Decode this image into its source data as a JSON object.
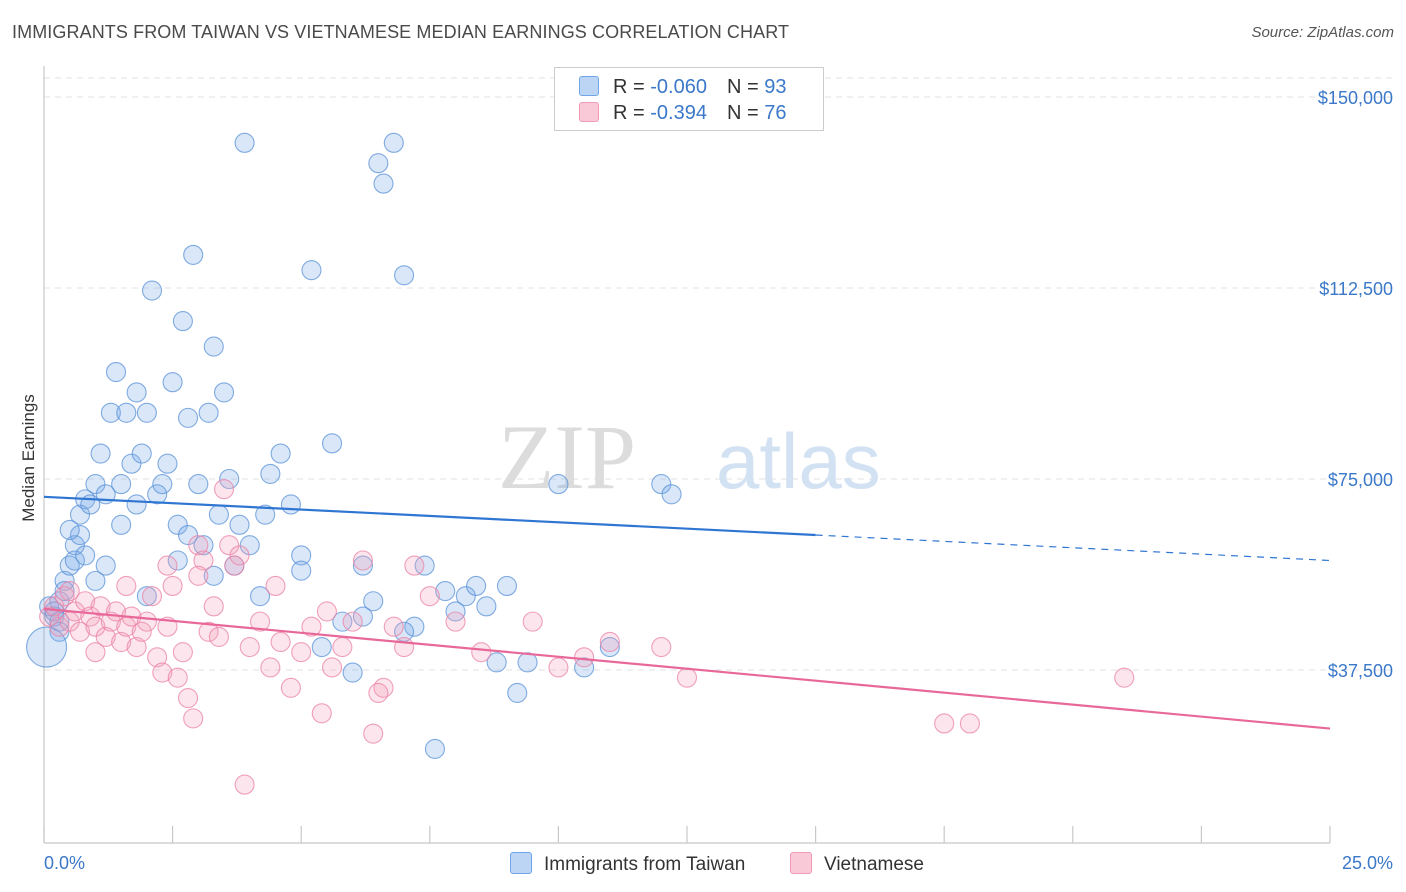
{
  "header": {
    "title": "IMMIGRANTS FROM TAIWAN VS VIETNAMESE MEDIAN EARNINGS CORRELATION CHART",
    "source": "Source: ZipAtlas.com"
  },
  "watermark": {
    "zip": "ZIP",
    "atlas": "atlas"
  },
  "legend": {
    "rows": [
      {
        "r_label": "R = ",
        "r_value": "-0.060",
        "n_label": "N = ",
        "n_value": "93",
        "color": "#6ea6e8"
      },
      {
        "r_label": "R = ",
        "r_value": "-0.394",
        "n_label": "N = ",
        "n_value": "76",
        "color": "#f09ab5"
      }
    ]
  },
  "bottom_legend": {
    "items": [
      {
        "label": "Immigrants from Taiwan",
        "color": "#6ea6e8"
      },
      {
        "label": "Vietnamese",
        "color": "#f09ab5"
      }
    ]
  },
  "chart_data": {
    "type": "scatter",
    "title": "IMMIGRANTS FROM TAIWAN VS VIETNAMESE MEDIAN EARNINGS CORRELATION CHART",
    "xlabel": "",
    "ylabel": "Median Earnings",
    "xlim": [
      0,
      25
    ],
    "ylim": [
      0,
      150000
    ],
    "x_tick_labels": [
      "0.0%",
      "25.0%"
    ],
    "y_ticks": [
      37500,
      75000,
      112500,
      150000
    ],
    "y_tick_labels": [
      "$37,500",
      "$75,000",
      "$112,500",
      "$150,000"
    ],
    "grid": "horizontal dashed",
    "legend_position": "top-center",
    "series": [
      {
        "name": "Immigrants from Taiwan",
        "color": "#6ea6e8",
        "trend": {
          "x": [
            0,
            15,
            25
          ],
          "y": [
            71500,
            64000,
            59000
          ],
          "solid_until": 15
        },
        "points": [
          [
            0.1,
            50000
          ],
          [
            0.2,
            48000
          ],
          [
            0.3,
            51000
          ],
          [
            0.4,
            55000
          ],
          [
            0.5,
            58000
          ],
          [
            0.6,
            62000
          ],
          [
            0.7,
            68000
          ],
          [
            0.8,
            71000
          ],
          [
            0.2,
            49000
          ],
          [
            0.3,
            47000
          ],
          [
            0.4,
            53000
          ],
          [
            0.6,
            59000
          ],
          [
            0.7,
            64000
          ],
          [
            0.9,
            70000
          ],
          [
            1.0,
            74000
          ],
          [
            1.1,
            80000
          ],
          [
            1.2,
            72000
          ],
          [
            1.3,
            88000
          ],
          [
            1.4,
            96000
          ],
          [
            1.5,
            74000
          ],
          [
            1.6,
            88000
          ],
          [
            1.7,
            78000
          ],
          [
            1.8,
            92000
          ],
          [
            1.9,
            80000
          ],
          [
            2.0,
            88000
          ],
          [
            2.1,
            112000
          ],
          [
            2.2,
            72000
          ],
          [
            2.3,
            74000
          ],
          [
            2.4,
            78000
          ],
          [
            2.5,
            94000
          ],
          [
            2.6,
            66000
          ],
          [
            2.7,
            106000
          ],
          [
            2.8,
            87000
          ],
          [
            2.9,
            119000
          ],
          [
            3.0,
            74000
          ],
          [
            3.1,
            62000
          ],
          [
            3.2,
            88000
          ],
          [
            3.3,
            101000
          ],
          [
            3.4,
            68000
          ],
          [
            3.5,
            92000
          ],
          [
            3.6,
            75000
          ],
          [
            3.8,
            66000
          ],
          [
            3.9,
            141000
          ],
          [
            4.0,
            62000
          ],
          [
            4.2,
            52000
          ],
          [
            4.4,
            76000
          ],
          [
            4.6,
            80000
          ],
          [
            4.8,
            70000
          ],
          [
            5.0,
            60000
          ],
          [
            5.2,
            116000
          ],
          [
            5.4,
            42000
          ],
          [
            5.6,
            82000
          ],
          [
            5.8,
            47000
          ],
          [
            6.0,
            37000
          ],
          [
            6.2,
            58000
          ],
          [
            6.4,
            51000
          ],
          [
            6.5,
            137000
          ],
          [
            6.6,
            133000
          ],
          [
            6.8,
            141000
          ],
          [
            7.0,
            115000
          ],
          [
            7.2,
            46000
          ],
          [
            7.4,
            58000
          ],
          [
            7.6,
            22000
          ],
          [
            7.8,
            53000
          ],
          [
            8.0,
            49000
          ],
          [
            8.2,
            52000
          ],
          [
            8.4,
            54000
          ],
          [
            8.6,
            50000
          ],
          [
            8.8,
            39000
          ],
          [
            9.0,
            54000
          ],
          [
            9.2,
            33000
          ],
          [
            9.4,
            39000
          ],
          [
            10.0,
            74000
          ],
          [
            10.5,
            38000
          ],
          [
            11.0,
            42000
          ],
          [
            12.0,
            74000
          ],
          [
            12.2,
            72000
          ],
          [
            3.7,
            58000
          ],
          [
            2.0,
            52000
          ],
          [
            1.0,
            55000
          ],
          [
            1.5,
            66000
          ],
          [
            0.8,
            60000
          ],
          [
            4.3,
            68000
          ],
          [
            2.8,
            64000
          ],
          [
            3.3,
            56000
          ],
          [
            5.0,
            57000
          ],
          [
            6.2,
            48000
          ],
          [
            7.0,
            45000
          ],
          [
            1.8,
            70000
          ],
          [
            0.5,
            65000
          ],
          [
            1.2,
            58000
          ],
          [
            2.6,
            59000
          ],
          [
            0.3,
            45000
          ]
        ]
      },
      {
        "name": "Vietnamese",
        "color": "#f09ab5",
        "trend": {
          "x": [
            0,
            25
          ],
          "y": [
            49500,
            26000
          ],
          "solid_until": 25
        },
        "points": [
          [
            0.1,
            48000
          ],
          [
            0.2,
            50000
          ],
          [
            0.3,
            46000
          ],
          [
            0.4,
            52000
          ],
          [
            0.5,
            47000
          ],
          [
            0.6,
            49000
          ],
          [
            0.7,
            45000
          ],
          [
            0.8,
            51000
          ],
          [
            0.9,
            48000
          ],
          [
            1.0,
            46000
          ],
          [
            1.1,
            50000
          ],
          [
            1.2,
            44000
          ],
          [
            1.3,
            47000
          ],
          [
            1.4,
            49000
          ],
          [
            1.5,
            43000
          ],
          [
            1.6,
            46000
          ],
          [
            1.7,
            48000
          ],
          [
            1.8,
            42000
          ],
          [
            1.9,
            45000
          ],
          [
            2.0,
            47000
          ],
          [
            2.1,
            52000
          ],
          [
            2.2,
            40000
          ],
          [
            2.3,
            37000
          ],
          [
            2.4,
            58000
          ],
          [
            2.5,
            54000
          ],
          [
            2.6,
            36000
          ],
          [
            2.7,
            41000
          ],
          [
            2.8,
            32000
          ],
          [
            2.9,
            28000
          ],
          [
            3.0,
            62000
          ],
          [
            3.1,
            59000
          ],
          [
            3.2,
            45000
          ],
          [
            3.3,
            50000
          ],
          [
            3.4,
            44000
          ],
          [
            3.5,
            73000
          ],
          [
            3.6,
            62000
          ],
          [
            3.7,
            58000
          ],
          [
            3.8,
            60000
          ],
          [
            3.9,
            15000
          ],
          [
            4.0,
            42000
          ],
          [
            4.2,
            47000
          ],
          [
            4.4,
            38000
          ],
          [
            4.6,
            43000
          ],
          [
            4.8,
            34000
          ],
          [
            5.0,
            41000
          ],
          [
            5.2,
            46000
          ],
          [
            5.4,
            29000
          ],
          [
            5.6,
            38000
          ],
          [
            5.8,
            42000
          ],
          [
            6.0,
            47000
          ],
          [
            6.2,
            59000
          ],
          [
            6.4,
            25000
          ],
          [
            6.6,
            34000
          ],
          [
            6.8,
            46000
          ],
          [
            7.0,
            42000
          ],
          [
            7.2,
            58000
          ],
          [
            8.0,
            47000
          ],
          [
            8.5,
            41000
          ],
          [
            9.5,
            47000
          ],
          [
            10.0,
            38000
          ],
          [
            10.5,
            40000
          ],
          [
            11.0,
            43000
          ],
          [
            12.0,
            42000
          ],
          [
            12.5,
            36000
          ],
          [
            17.5,
            27000
          ],
          [
            18.0,
            27000
          ],
          [
            21.0,
            36000
          ],
          [
            1.6,
            54000
          ],
          [
            2.4,
            46000
          ],
          [
            3.0,
            56000
          ],
          [
            4.5,
            54000
          ],
          [
            5.5,
            49000
          ],
          [
            6.5,
            33000
          ],
          [
            7.5,
            52000
          ],
          [
            0.5,
            53000
          ],
          [
            1.0,
            41000
          ]
        ]
      }
    ]
  }
}
